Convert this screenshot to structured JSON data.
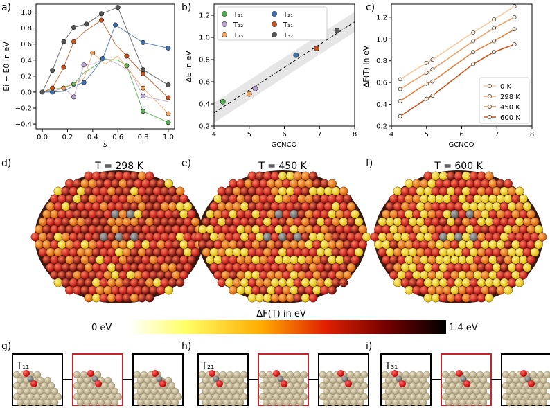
{
  "panel_letters": [
    "a)",
    "b)",
    "c)",
    "d)",
    "e)",
    "f)",
    "g)",
    "h)",
    "i)"
  ],
  "colors": {
    "T11": "#4daf4a",
    "T12": "#b8a2d6",
    "T13": "#f2a35e",
    "T21": "#3a6fb0",
    "T31": "#c9511a",
    "T32": "#555555",
    "K0": "#f7c89a",
    "K298": "#f0a066",
    "K450": "#e57f3c",
    "K600": "#c9511a",
    "ink": "#000000",
    "grey": "#888888"
  },
  "chart_data": [
    {
      "id": "a",
      "type": "line",
      "xlabel": "s",
      "ylabel": "Ei − E0 in eV",
      "xlim": [
        -0.05,
        1.05
      ],
      "ylim": [
        -0.46,
        1.1
      ],
      "xticks": [
        "0.0",
        "0.2",
        "0.4",
        "0.6",
        "0.8",
        "1.0"
      ],
      "yticks": [
        "−0.4",
        "−0.2",
        "0.0",
        "0.2",
        "0.4",
        "0.6",
        "0.8",
        "1.0"
      ],
      "series": [
        {
          "name": "T11",
          "x": [
            0,
            0.08,
            0.17,
            0.25,
            0.33,
            0.5,
            0.6,
            0.67,
            0.8,
            1.0
          ],
          "y": [
            0,
            0.03,
            0.06,
            0.1,
            0.24,
            0.41,
            0.4,
            0.33,
            -0.24,
            -0.38
          ],
          "markers": [
            false,
            false,
            false,
            true,
            false,
            false,
            false,
            true,
            true,
            true
          ]
        },
        {
          "name": "T12",
          "x": [
            0,
            0.08,
            0.17,
            0.25,
            0.33,
            0.4,
            0.5,
            0.6,
            0.7,
            0.8,
            1.0
          ],
          "y": [
            0,
            0.01,
            0.05,
            -0.06,
            0.34,
            0.35,
            0.42,
            0.35,
            0.26,
            -0.05,
            -0.12
          ],
          "markers": [
            false,
            false,
            true,
            true,
            true,
            false,
            false,
            false,
            false,
            true,
            false
          ]
        },
        {
          "name": "T13",
          "x": [
            0,
            0.08,
            0.17,
            0.25,
            0.33,
            0.4,
            0.5,
            0.6,
            0.8,
            1.0
          ],
          "y": [
            0,
            0.04,
            0.05,
            0.1,
            0.17,
            0.49,
            0.35,
            0.45,
            0.05,
            -0.27
          ],
          "markers": [
            false,
            false,
            true,
            false,
            false,
            true,
            false,
            false,
            true,
            true
          ]
        },
        {
          "name": "T21",
          "x": [
            0,
            0.08,
            0.17,
            0.25,
            0.33,
            0.4,
            0.48,
            0.58,
            0.8,
            1.0
          ],
          "y": [
            0,
            0.0,
            0.01,
            0.08,
            0.12,
            0.25,
            0.42,
            0.84,
            0.62,
            0.55
          ],
          "markers": [
            false,
            true,
            false,
            false,
            true,
            false,
            true,
            true,
            true,
            true
          ]
        },
        {
          "name": "T31",
          "x": [
            0,
            0.08,
            0.17,
            0.25,
            0.33,
            0.47,
            0.58,
            0.67,
            0.8,
            1.0
          ],
          "y": [
            0,
            0.05,
            0.31,
            0.63,
            0.75,
            0.9,
            0.6,
            0.45,
            0.23,
            -0.07
          ],
          "markers": [
            false,
            true,
            true,
            true,
            false,
            true,
            false,
            true,
            true,
            true
          ]
        },
        {
          "name": "T32",
          "x": [
            0,
            0.08,
            0.17,
            0.25,
            0.35,
            0.47,
            0.6,
            0.8,
            1.0
          ],
          "y": [
            0,
            0.27,
            0.63,
            0.81,
            0.85,
            0.98,
            1.06,
            0.28,
            0.09
          ],
          "markers": [
            true,
            true,
            true,
            true,
            true,
            true,
            true,
            true,
            true
          ]
        }
      ]
    },
    {
      "id": "b",
      "type": "scatter",
      "xlabel": "GCNCO",
      "ylabel": "ΔE in eV",
      "xlim": [
        4,
        8
      ],
      "ylim": [
        0.2,
        1.3
      ],
      "xticks": [
        "4",
        "5",
        "6",
        "7",
        "8"
      ],
      "yticks": [
        "0.2",
        "0.4",
        "0.6",
        "0.8",
        "1.0",
        "1.2"
      ],
      "points": [
        {
          "name": "T11",
          "x": 4.25,
          "y": 0.42
        },
        {
          "name": "T12",
          "x": 5.17,
          "y": 0.54
        },
        {
          "name": "T13",
          "x": 5.0,
          "y": 0.49
        },
        {
          "name": "T21",
          "x": 6.33,
          "y": 0.84
        },
        {
          "name": "T31",
          "x": 6.92,
          "y": 0.9
        },
        {
          "name": "T32",
          "x": 7.5,
          "y": 1.06
        }
      ],
      "fit": {
        "slope": 0.205,
        "intercept": -0.5,
        "band": 0.09
      },
      "legend": [
        "T₁₁",
        "T₁₂",
        "T₁₃",
        "T₂₁",
        "T₃₁",
        "T₃₂"
      ]
    },
    {
      "id": "c",
      "type": "line",
      "xlabel": "GCNCO",
      "ylabel": "ΔF(T) in eV",
      "xlim": [
        4,
        8
      ],
      "ylim": [
        0.2,
        1.32
      ],
      "xticks": [
        "4",
        "5",
        "6",
        "7",
        "8"
      ],
      "yticks": [
        "0.2",
        "0.4",
        "0.6",
        "0.8",
        "1.0",
        "1.2"
      ],
      "x": [
        4.25,
        5.0,
        5.17,
        6.33,
        6.92,
        7.5
      ],
      "series": [
        {
          "name": "0 K",
          "y": [
            0.63,
            0.78,
            0.81,
            1.06,
            1.18,
            1.3
          ]
        },
        {
          "name": "298 K",
          "y": [
            0.54,
            0.69,
            0.72,
            0.98,
            1.1,
            1.2
          ]
        },
        {
          "name": "450 K",
          "y": [
            0.43,
            0.59,
            0.61,
            0.88,
            0.98,
            1.09
          ]
        },
        {
          "name": "600 K",
          "y": [
            0.29,
            0.45,
            0.48,
            0.77,
            0.88,
            0.95
          ]
        }
      ],
      "legend": [
        "0 K",
        "298 K",
        "450 K",
        "600 K"
      ]
    }
  ],
  "renders": {
    "titles": [
      "T = 298 K",
      "T = 450 K",
      "T = 600 K"
    ],
    "colorbar": {
      "label": "ΔF(T) in eV",
      "min_label": "0 eV",
      "max_label": "1.4 eV",
      "min": 0,
      "max": 1.4
    }
  },
  "snapshots": {
    "labels": [
      "T₁₁",
      "T₂₁",
      "T₃₁"
    ]
  }
}
